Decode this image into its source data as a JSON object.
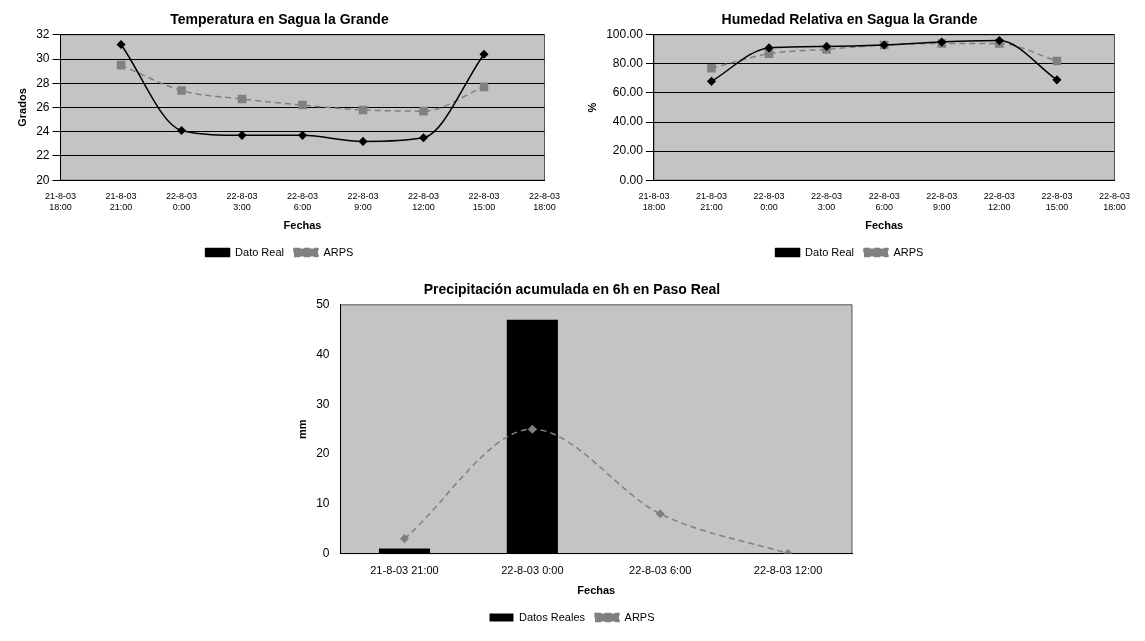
{
  "chart_data": [
    {
      "type": "line",
      "title": "Temperatura en Sagua la Grande",
      "xlabel": "Fechas",
      "ylabel": "Grados",
      "categories": [
        "21-8-03 18:00",
        "21-8-03 21:00",
        "22-8-03 0:00",
        "22-8-03 3:00",
        "22-8-03 6:00",
        "22-8-03 9:00",
        "22-8-03 12:00",
        "22-8-03 15:00",
        "22-8-03 18:00"
      ],
      "ylim": [
        20,
        32
      ],
      "yticks": [
        20,
        22,
        24,
        26,
        28,
        30,
        32
      ],
      "grid": "y",
      "legend": "bottom",
      "series": [
        {
          "name": "Dato Real",
          "color": "#000000",
          "marker": "diamond",
          "line_style": "solid",
          "values": [
            null,
            31.2,
            24.1,
            23.7,
            23.7,
            23.2,
            23.5,
            30.4,
            null
          ]
        },
        {
          "name": "ARPS",
          "color": "#808080",
          "marker": "square",
          "line_style": "dashed",
          "values": [
            null,
            29.5,
            27.4,
            26.7,
            26.2,
            25.8,
            25.7,
            27.7,
            null
          ]
        }
      ]
    },
    {
      "type": "line",
      "title": "Humedad Relativa en Sagua la Grande",
      "xlabel": "Fechas",
      "ylabel": "%",
      "categories": [
        "21-8-03 18:00",
        "21-8-03 21:00",
        "22-8-03 0:00",
        "22-8-03 3:00",
        "22-8-03 6:00",
        "22-8-03 9:00",
        "22-8-03 12:00",
        "22-8-03 15:00",
        "22-8-03 18:00"
      ],
      "ylim": [
        0,
        100
      ],
      "yticks": [
        {
          "value": 0,
          "label": "0.00"
        },
        {
          "value": 20,
          "label": "20.00"
        },
        {
          "value": 40,
          "label": "40.00"
        },
        {
          "value": 60,
          "label": "60.00"
        },
        {
          "value": 80,
          "label": "80.00"
        },
        {
          "value": 100,
          "label": "100.00"
        }
      ],
      "grid": "y",
      "legend": "bottom",
      "series": [
        {
          "name": "Dato Real",
          "color": "#000000",
          "marker": "diamond",
          "line_style": "solid",
          "values": [
            null,
            68,
            91,
            92,
            93,
            95,
            96,
            69,
            null
          ]
        },
        {
          "name": "ARPS",
          "color": "#808080",
          "marker": "square",
          "line_style": "dashed",
          "values": [
            null,
            77,
            87,
            90,
            93,
            94,
            94,
            82,
            null
          ]
        }
      ]
    },
    {
      "type": "bar",
      "title": "Precipitación acumulada en 6h en Paso Real",
      "xlabel": "Fechas",
      "ylabel": "mm",
      "categories": [
        "21-8-03 21:00",
        "22-8-03 0:00",
        "22-8-03 6:00",
        "22-8-03 12:00"
      ],
      "ylim": [
        0,
        50
      ],
      "yticks": [
        0,
        10,
        20,
        30,
        40,
        50
      ],
      "legend": "bottom",
      "series": [
        {
          "name": "Datos Reales",
          "color": "#000000",
          "values": [
            1,
            47,
            0,
            0
          ]
        },
        {
          "name": "ARPS",
          "type": "line",
          "color": "#808080",
          "marker": "diamond",
          "line_style": "dashed",
          "values": [
            3,
            25,
            8,
            0
          ]
        }
      ]
    }
  ]
}
